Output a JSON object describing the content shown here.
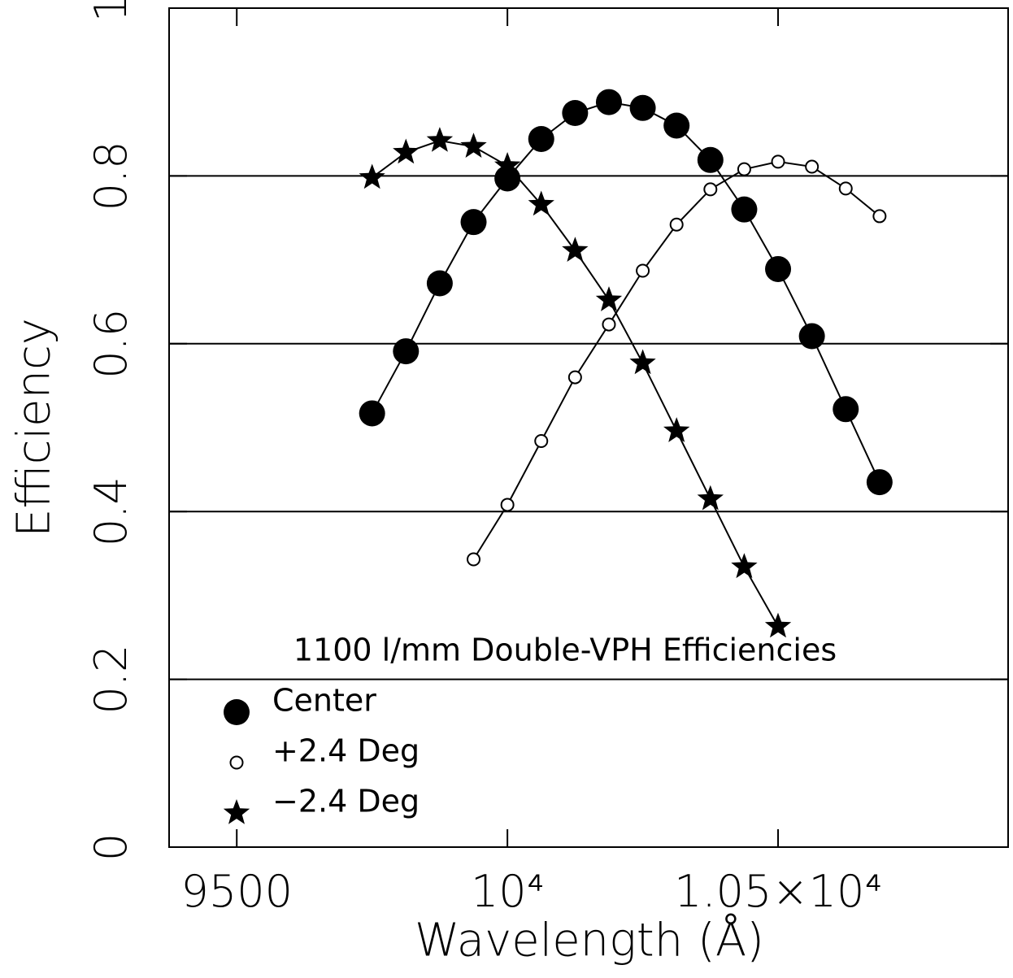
{
  "chart_data": {
    "type": "line",
    "annotation": "1100 l/mm Double-VPH Efficiencies",
    "xlabel": "Wavelength (Å)",
    "ylabel": "Efficiency",
    "xlim": [
      9375,
      10925
    ],
    "ylim": [
      0,
      1
    ],
    "xticks": [
      9500,
      {
        "value": 10000,
        "label": "10⁴"
      },
      {
        "value": 10500,
        "label": "1.05×10⁴"
      }
    ],
    "yticks": [
      0,
      0.2,
      0.4,
      0.6,
      0.8,
      1
    ],
    "grid": true,
    "legend": "lower left",
    "series": [
      {
        "name": "Center",
        "color": "#000",
        "marker": "filled-circle",
        "x": [
          9750,
          9812.5,
          9875,
          9937.5,
          10000,
          10062.5,
          10125,
          10187.5,
          10250,
          10312.5,
          10375,
          10437.5,
          10500,
          10562.5,
          10625,
          10687.5
        ],
        "values": [
          0.517,
          0.591,
          0.672,
          0.745,
          0.797,
          0.844,
          0.875,
          0.888,
          0.881,
          0.86,
          0.819,
          0.76,
          0.689,
          0.609,
          0.522,
          0.435
        ]
      },
      {
        "name": "+2.4 Deg",
        "color": "#000",
        "marker": "open-circle",
        "x": [
          9937.5,
          10000,
          10062.5,
          10125,
          10187.5,
          10250,
          10312.5,
          10375,
          10437.5,
          10500,
          10562.5,
          10625,
          10687.5
        ],
        "values": [
          0.343,
          0.408,
          0.484,
          0.56,
          0.623,
          0.687,
          0.742,
          0.784,
          0.808,
          0.817,
          0.811,
          0.785,
          0.752
        ]
      },
      {
        "name": "−2.4 Deg",
        "color": "#000",
        "marker": "star",
        "x": [
          9750,
          9812.5,
          9875,
          9937.5,
          10000,
          10062.5,
          10125,
          10187.5,
          10250,
          10312.5,
          10375,
          10437.5,
          10500
        ],
        "values": [
          0.798,
          0.828,
          0.842,
          0.835,
          0.812,
          0.766,
          0.711,
          0.652,
          0.577,
          0.496,
          0.415,
          0.334,
          0.263
        ]
      }
    ]
  }
}
